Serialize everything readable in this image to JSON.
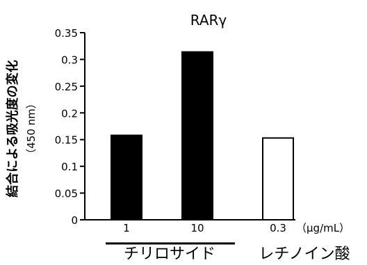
{
  "chart_data": {
    "type": "bar",
    "title": "RARγ",
    "ylabel": "結合による吸光度の変化",
    "ylabel_unit": "（450 nm）",
    "categories": [
      "1",
      "10",
      "0.3"
    ],
    "category_unit": "（µg/mL）",
    "values": [
      0.158,
      0.314,
      0.153
    ],
    "bar_colors": [
      "#000000",
      "#000000",
      "#ffffff"
    ],
    "yticks": [
      "0",
      "0.05",
      "0.1",
      "0.15",
      "0.2",
      "0.25",
      "0.3",
      "0.35"
    ],
    "ylim": [
      0,
      0.35
    ],
    "groups": [
      {
        "label": "チリロサイド",
        "categories": [
          "1",
          "10"
        ]
      },
      {
        "label": "レチノイン酸",
        "categories": [
          "0.3"
        ]
      }
    ],
    "grid": false
  }
}
